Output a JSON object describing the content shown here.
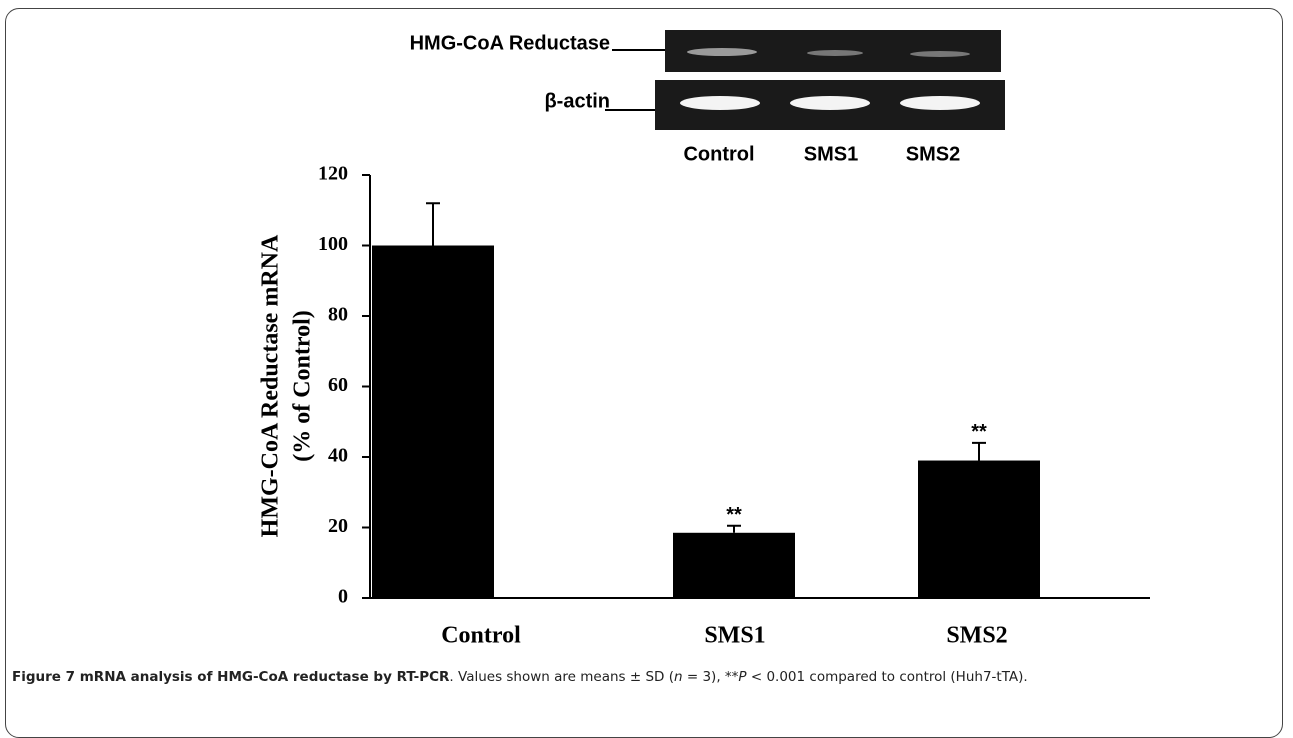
{
  "chart_data": {
    "type": "bar",
    "y_label": "HMG-CoA Reductase mRNA",
    "y_label_2": "(% of Control)",
    "categories": [
      "Control",
      "SMS1",
      "SMS2"
    ],
    "values": [
      100,
      18.5,
      39
    ],
    "errors": [
      12,
      2,
      5
    ],
    "color": "#000000",
    "ylim": [
      0,
      120
    ],
    "yticks": [
      0,
      20,
      40,
      60,
      80,
      100,
      120
    ],
    "annotations": [
      {
        "category": "SMS1",
        "text": "**"
      },
      {
        "category": "SMS2",
        "text": "**"
      }
    ]
  },
  "gel": {
    "rows": [
      "HMG-CoA Reductase",
      "β-actin"
    ],
    "lanes": [
      "Control",
      "SMS1",
      "SMS2"
    ]
  },
  "caption": {
    "title": "Figure 7 mRNA analysis of HMG-CoA reductase by RT-PCR",
    "t1": ". Values shown are means ± SD (",
    "n": "n",
    "t2": " = 3), **",
    "p": "P",
    "t3": " < 0.001 compared to control (Huh7-tTA)."
  }
}
